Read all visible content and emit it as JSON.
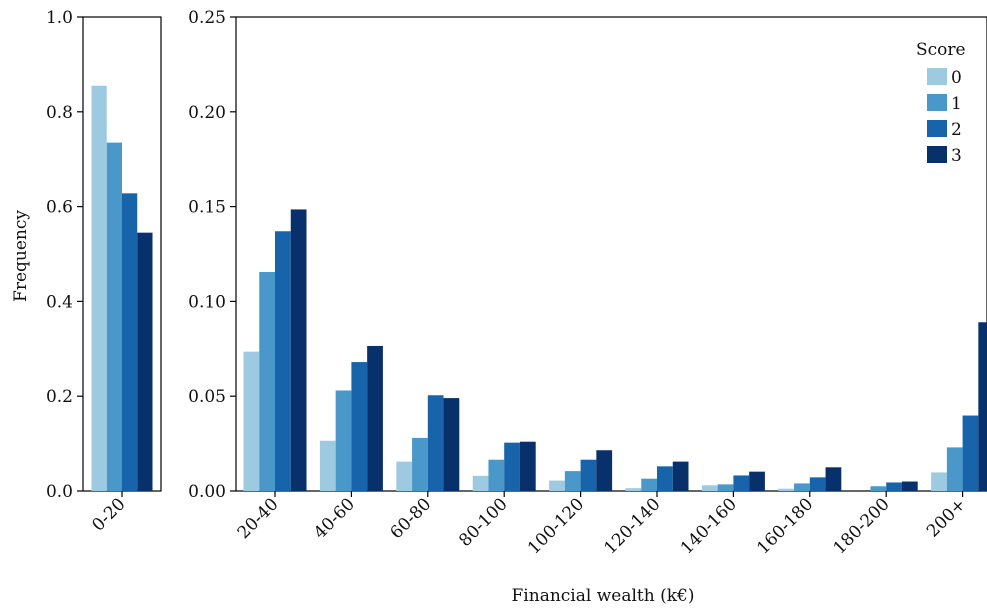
{
  "chart_data": [
    {
      "type": "bar",
      "panel": "left",
      "categories": [
        "0-20"
      ],
      "series": [
        {
          "name": "0",
          "values": [
            0.855
          ]
        },
        {
          "name": "1",
          "values": [
            0.735
          ]
        },
        {
          "name": "2",
          "values": [
            0.628
          ]
        },
        {
          "name": "3",
          "values": [
            0.545
          ]
        }
      ],
      "ylabel": "Frequency",
      "ylim": [
        0,
        1.0
      ],
      "yticks": [
        "0.0",
        "0.2",
        "0.4",
        "0.6",
        "0.8",
        "1.0"
      ],
      "grid": false
    },
    {
      "type": "bar",
      "panel": "right",
      "categories": [
        "20-40",
        "40-60",
        "60-80",
        "80-100",
        "100-120",
        "120-140",
        "140-160",
        "160-180",
        "180-200",
        "200+"
      ],
      "series": [
        {
          "name": "0",
          "values": [
            0.0735,
            0.0265,
            0.0155,
            0.008,
            0.0055,
            0.0015,
            0.003,
            0.0012,
            0.0,
            0.0098
          ]
        },
        {
          "name": "1",
          "values": [
            0.1155,
            0.053,
            0.028,
            0.0165,
            0.0105,
            0.0065,
            0.0035,
            0.004,
            0.0025,
            0.023
          ]
        },
        {
          "name": "2",
          "values": [
            0.137,
            0.068,
            0.0505,
            0.0255,
            0.0165,
            0.013,
            0.0082,
            0.0072,
            0.0045,
            0.0398
          ]
        },
        {
          "name": "3",
          "values": [
            0.1485,
            0.0765,
            0.049,
            0.026,
            0.0215,
            0.0155,
            0.0102,
            0.0125,
            0.005,
            0.089
          ]
        }
      ],
      "xlabel": "Financial wealth (k€)",
      "ylim": [
        0,
        0.25
      ],
      "yticks": [
        "0.00",
        "0.05",
        "0.10",
        "0.15",
        "0.20",
        "0.25"
      ],
      "legend_title": "Score",
      "legend_position": "top-right",
      "grid": false
    }
  ],
  "colors": [
    "#9ecae1",
    "#4a98c9",
    "#1764ab",
    "#08306b"
  ]
}
